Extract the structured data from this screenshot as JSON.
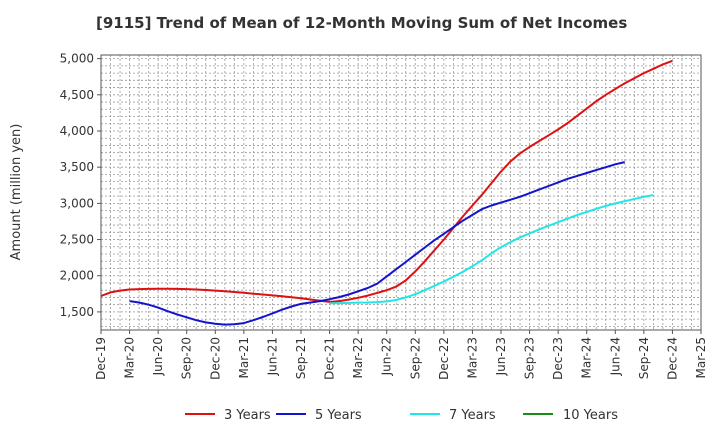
{
  "chart_data": {
    "type": "line",
    "title": "[9115]  Trend of Mean of 12-Month Moving Sum of Net Incomes",
    "xlabel": "",
    "ylabel": "Amount (million yen)",
    "x_ticks": [
      "Dec-19",
      "Mar-20",
      "Jun-20",
      "Sep-20",
      "Dec-20",
      "Mar-21",
      "Jun-21",
      "Sep-21",
      "Dec-21",
      "Mar-22",
      "Jun-22",
      "Sep-22",
      "Dec-22",
      "Mar-23",
      "Jun-23",
      "Sep-23",
      "Dec-23",
      "Mar-24",
      "Jun-24",
      "Sep-24",
      "Dec-24",
      "Mar-25"
    ],
    "ylim": [
      1250,
      5050
    ],
    "y_ticks": [
      1500,
      2000,
      2500,
      3000,
      3500,
      4000,
      4500,
      5000
    ],
    "y_tick_labels": [
      "1,500",
      "2,000",
      "2,500",
      "3,000",
      "3,500",
      "4,000",
      "4,500",
      "5,000"
    ],
    "grid": true,
    "legend_position": "bottom",
    "series": [
      {
        "name": "3 Years",
        "color": "#dd1111",
        "start": "Dec-19",
        "values": [
          1720,
          1770,
          1795,
          1810,
          1815,
          1818,
          1820,
          1820,
          1818,
          1815,
          1810,
          1803,
          1795,
          1785,
          1775,
          1765,
          1752,
          1740,
          1728,
          1716,
          1703,
          1690,
          1672,
          1655,
          1638,
          1650,
          1670,
          1695,
          1725,
          1762,
          1800,
          1850,
          1935,
          2060,
          2200,
          2350,
          2500,
          2660,
          2820,
          2970,
          3120,
          3280,
          3440,
          3580,
          3690,
          3780,
          3860,
          3940,
          4020,
          4110,
          4210,
          4310,
          4410,
          4500,
          4580,
          4660,
          4730,
          4800,
          4860,
          4920,
          4970
        ]
      },
      {
        "name": "5 Years",
        "color": "#1414cc",
        "start": "Mar-20",
        "values": [
          1650,
          1630,
          1600,
          1560,
          1510,
          1465,
          1425,
          1385,
          1355,
          1335,
          1325,
          1330,
          1345,
          1385,
          1430,
          1480,
          1530,
          1575,
          1610,
          1630,
          1650,
          1675,
          1705,
          1740,
          1785,
          1830,
          1890,
          1990,
          2090,
          2190,
          2290,
          2390,
          2490,
          2580,
          2670,
          2760,
          2840,
          2920,
          2970,
          3010,
          3050,
          3090,
          3140,
          3190,
          3240,
          3290,
          3340,
          3380,
          3420,
          3460,
          3500,
          3540,
          3570
        ]
      },
      {
        "name": "7 Years",
        "color": "#22e6e6",
        "start": "Dec-21",
        "values": [
          1620,
          1622,
          1625,
          1628,
          1630,
          1635,
          1645,
          1665,
          1700,
          1745,
          1800,
          1860,
          1920,
          1985,
          2055,
          2130,
          2215,
          2310,
          2395,
          2465,
          2530,
          2585,
          2640,
          2690,
          2740,
          2790,
          2840,
          2880,
          2925,
          2965,
          3000,
          3030,
          3060,
          3090,
          3115
        ]
      },
      {
        "name": "10 Years",
        "color": "#1a8a1a",
        "start": "Dec-24",
        "values": []
      }
    ]
  }
}
